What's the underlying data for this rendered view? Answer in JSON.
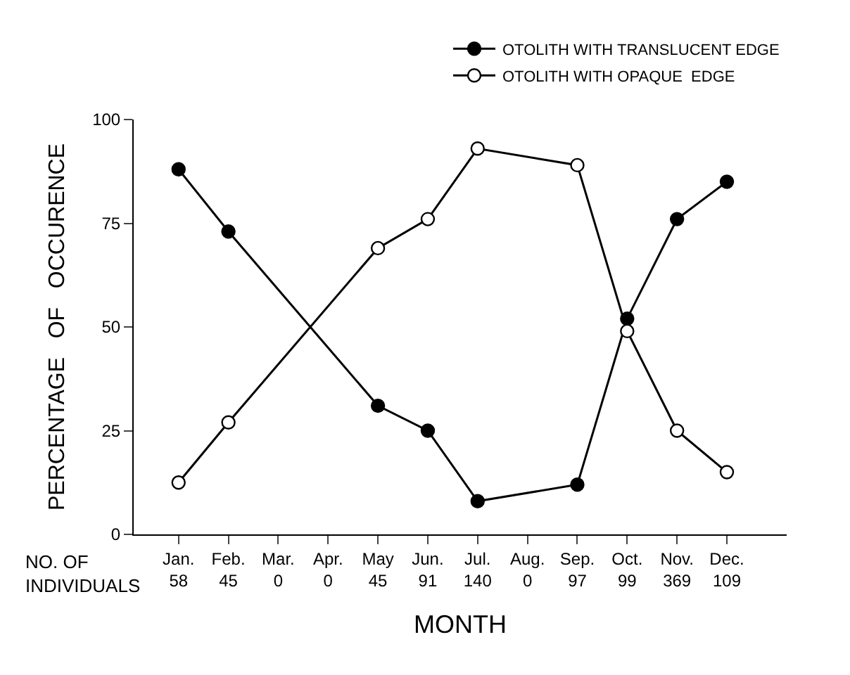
{
  "chart_data": {
    "type": "line",
    "xlabel": "MONTH",
    "ylabel": "PERCENTAGE   OF   OCCURENCE",
    "categories": [
      "Jan.\n58",
      "Feb.\n45",
      "Mar.\n0",
      "Apr.\n0",
      "May\n45",
      "Jun.\n91",
      "Jul.\n140",
      "Aug.\n0",
      "Sep.\n97",
      "Oct.\n99",
      "Nov.\n369",
      "Dec.\n109"
    ],
    "series": [
      {
        "name": "OTOLITH WITH TRANSLUCENT EDGE",
        "color": "#000000",
        "values": [
          88,
          73,
          null,
          null,
          31,
          25,
          8,
          null,
          12,
          52,
          76,
          85
        ]
      },
      {
        "name": "OTOLITH WITH OPAQUE  EDGE",
        "color": "#000000",
        "values": [
          12.5,
          27,
          null,
          null,
          69,
          76,
          93,
          null,
          89,
          49,
          25,
          15
        ]
      }
    ],
    "annotations": [
      "NO. OF\nINDIVIDUALS"
    ],
    "ylim": [
      0,
      100
    ],
    "yticks": [
      0,
      25,
      50,
      75,
      100
    ],
    "legend": "top right",
    "marker": "circle",
    "line_style": "solid"
  }
}
